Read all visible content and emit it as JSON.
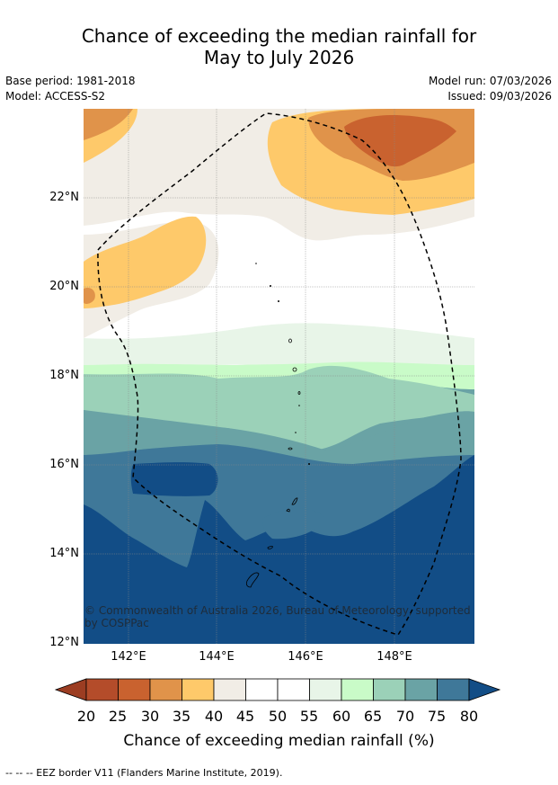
{
  "title_line1": "Chance of exceeding the median rainfall for",
  "title_line2": "May to July 2026",
  "base_period": "Base period: 1981-2018",
  "model": "Model: ACCESS-S2",
  "model_run": "Model run: 07/03/2026",
  "issued": "Issued: 09/03/2026",
  "lat_labels": [
    "22°N",
    "20°N",
    "18°N",
    "16°N",
    "14°N",
    "12°N"
  ],
  "lon_labels": [
    "142°E",
    "144°E",
    "146°E",
    "148°E"
  ],
  "credit": "© Commonwealth of Australia 2026, Bureau of Meteorology, supported by COSPPac",
  "colorbar": {
    "ticks": [
      "20",
      "25",
      "30",
      "35",
      "40",
      "45",
      "50",
      "55",
      "60",
      "65",
      "70",
      "75",
      "80"
    ],
    "label": "Chance of exceeding median rainfall (%)",
    "colors": [
      "#9c3d22",
      "#b44c2a",
      "#c9622f",
      "#e0934a",
      "#fec96a",
      "#f1ede6",
      "#ffffff",
      "#ffffff",
      "#e8f5e8",
      "#c9fbc8",
      "#9bd1b8",
      "#6aa3a5",
      "#3f7899",
      "#124d86"
    ]
  },
  "footer": "-- -- -- EEZ border V11 (Flanders Marine Institute, 2019)."
}
